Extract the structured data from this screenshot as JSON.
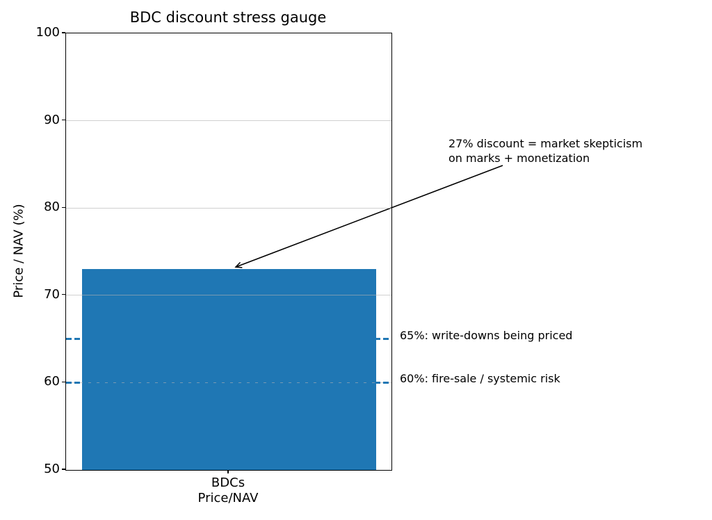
{
  "chart_data": {
    "type": "bar",
    "title": "BDC discount stress gauge",
    "xlabel": "",
    "ylabel": "Price / NAV (%)",
    "categories": [
      "BDCs\nPrice/NAV"
    ],
    "values": [
      73
    ],
    "ylim": [
      50,
      100
    ],
    "yticks": [
      50,
      60,
      70,
      80,
      90,
      100
    ],
    "gridline_values": [
      60,
      70,
      80,
      90
    ],
    "grid": "horizontal major gridlines, light gray, drawn above bar",
    "legend": "none",
    "bar_color": "#1f77b4",
    "reference_lines": [
      {
        "value": 65,
        "label": "65%: write-downs being priced",
        "style": "dashed",
        "color": "#1f77b4"
      },
      {
        "value": 60,
        "label": "60%: fire-sale / systemic risk",
        "style": "dashed",
        "color": "#1f77b4"
      }
    ],
    "annotation": {
      "text": "27% discount = market skepticism\non marks + monetization",
      "arrow_target_value": 73
    }
  },
  "colors": {
    "bar": "#1f77b4",
    "refline": "#1f77b4",
    "grid": "#b0b0b0",
    "spine": "#000000",
    "text": "#000000",
    "background": "#ffffff"
  }
}
